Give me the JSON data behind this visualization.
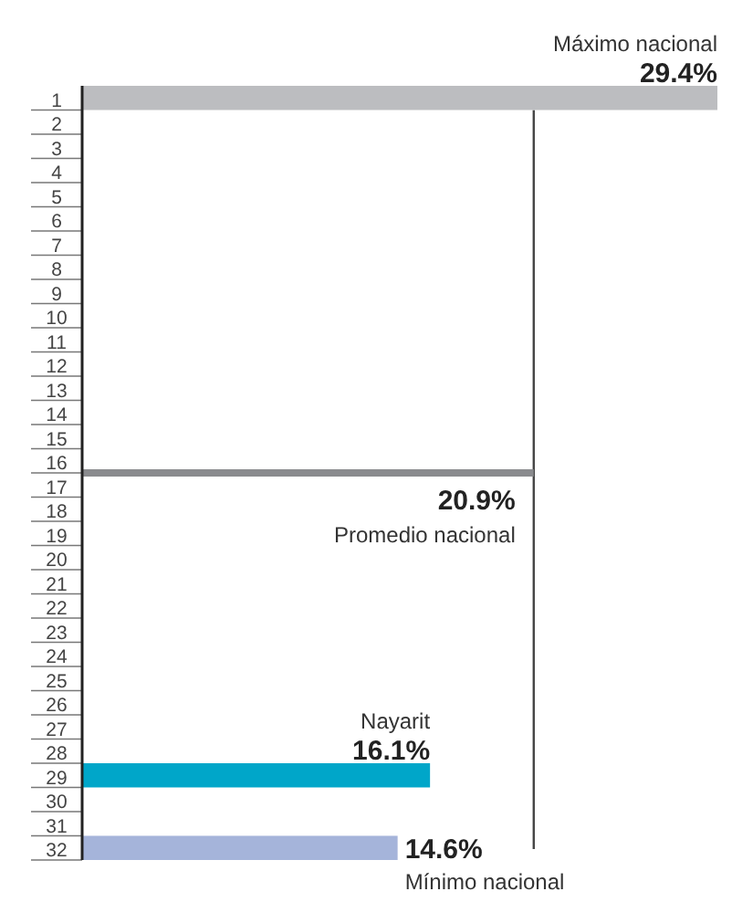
{
  "chart_data": {
    "type": "bar",
    "orientation": "horizontal",
    "categories": [
      "1",
      "2",
      "3",
      "4",
      "5",
      "6",
      "7",
      "8",
      "9",
      "10",
      "11",
      "12",
      "13",
      "14",
      "15",
      "16",
      "17",
      "18",
      "19",
      "20",
      "21",
      "22",
      "23",
      "24",
      "25",
      "26",
      "27",
      "28",
      "29",
      "30",
      "31",
      "32"
    ],
    "values": [
      29.4,
      null,
      null,
      null,
      null,
      null,
      null,
      null,
      null,
      null,
      null,
      null,
      null,
      null,
      null,
      null,
      null,
      null,
      null,
      null,
      null,
      null,
      null,
      null,
      null,
      null,
      null,
      null,
      16.1,
      null,
      null,
      14.6
    ],
    "colors": [
      "#bcbdc0",
      null,
      null,
      null,
      null,
      null,
      null,
      null,
      null,
      null,
      null,
      null,
      null,
      null,
      null,
      null,
      null,
      null,
      null,
      null,
      null,
      null,
      null,
      null,
      null,
      null,
      null,
      null,
      "#00a6c9",
      null,
      null,
      "#a5b4da"
    ],
    "ref_lines": [
      {
        "axis": "x",
        "value": 20.9,
        "label": "20.9%",
        "color": "#444444"
      }
    ],
    "value_labels": [
      "29.4%",
      null,
      null,
      null,
      null,
      null,
      null,
      null,
      null,
      null,
      null,
      null,
      null,
      null,
      null,
      null,
      null,
      null,
      null,
      null,
      null,
      null,
      null,
      null,
      null,
      null,
      null,
      null,
      "16.1%",
      null,
      null,
      "14.6%"
    ],
    "annotations": [
      {
        "text": "Máximo nacional",
        "x": 29.4,
        "y": "1"
      },
      {
        "text": "Promedio nacional",
        "x": 20.9
      },
      {
        "text": "Nayarit",
        "x": 16.1,
        "y": "29"
      },
      {
        "text": "Mínimo nacional",
        "x": 14.6,
        "y": "32"
      }
    ]
  }
}
